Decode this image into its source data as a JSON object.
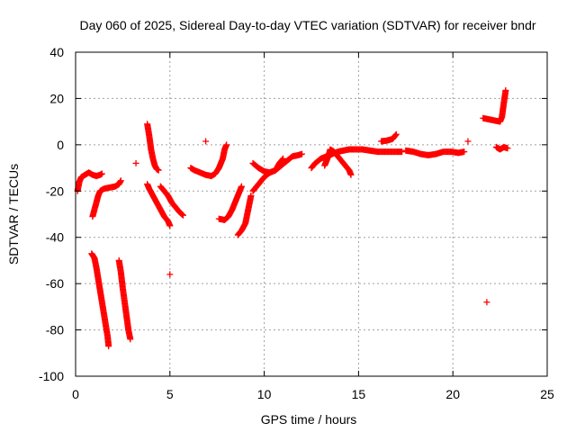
{
  "chart_data": {
    "type": "scatter",
    "title": "Day 060 of 2025, Sidereal Day-to-day VTEC variation (SDTVAR) for receiver bndr",
    "xlabel": "GPS time / hours",
    "ylabel": "SDTVAR / TECUs",
    "xlim": [
      0,
      25
    ],
    "ylim": [
      -100,
      40
    ],
    "xticks": [
      "0",
      "5",
      "10",
      "15",
      "20",
      "25"
    ],
    "yticks": [
      "-100",
      "-80",
      "-60",
      "-40",
      "-20",
      "0",
      "20",
      "40"
    ],
    "grid": true,
    "legend": "none",
    "marker_color": "#ff0000",
    "marker": "plus",
    "series": [
      {
        "segments": [
          [
            [
              0.1,
              -20
            ],
            [
              0.2,
              -16
            ],
            [
              0.3,
              -14
            ],
            [
              0.5,
              -13
            ],
            [
              0.7,
              -12
            ],
            [
              0.9,
              -13
            ],
            [
              1.1,
              -13.5
            ],
            [
              1.3,
              -13
            ],
            [
              1.4,
              -12.5
            ]
          ],
          [
            [
              0.9,
              -31
            ],
            [
              1.0,
              -28
            ],
            [
              1.1,
              -25
            ],
            [
              1.2,
              -22
            ],
            [
              1.3,
              -20
            ],
            [
              1.5,
              -19
            ],
            [
              1.8,
              -18.5
            ],
            [
              2.1,
              -18
            ],
            [
              2.3,
              -17
            ],
            [
              2.4,
              -15.5
            ]
          ],
          [
            [
              0.85,
              -47
            ],
            [
              1.0,
              -49
            ],
            [
              1.1,
              -53
            ],
            [
              1.2,
              -58
            ],
            [
              1.3,
              -63
            ],
            [
              1.4,
              -68
            ],
            [
              1.5,
              -73
            ],
            [
              1.6,
              -78
            ],
            [
              1.7,
              -83
            ],
            [
              1.75,
              -87
            ]
          ],
          [
            [
              2.3,
              -50
            ],
            [
              2.4,
              -55
            ],
            [
              2.5,
              -62
            ],
            [
              2.6,
              -68
            ],
            [
              2.7,
              -74
            ],
            [
              2.8,
              -80
            ],
            [
              2.9,
              -84
            ]
          ],
          [
            [
              3.8,
              9
            ],
            [
              3.9,
              4
            ],
            [
              4.0,
              -2
            ],
            [
              4.1,
              -6
            ],
            [
              4.2,
              -9
            ],
            [
              4.3,
              -10.5
            ],
            [
              4.4,
              -11
            ]
          ],
          [
            [
              3.8,
              -17
            ],
            [
              3.9,
              -19
            ],
            [
              4.1,
              -22
            ],
            [
              4.3,
              -25
            ],
            [
              4.5,
              -28
            ],
            [
              4.7,
              -31
            ],
            [
              4.9,
              -33
            ],
            [
              5.0,
              -35
            ]
          ],
          [
            [
              4.5,
              -18
            ],
            [
              4.7,
              -20
            ],
            [
              4.9,
              -22
            ],
            [
              5.1,
              -25
            ],
            [
              5.3,
              -27
            ],
            [
              5.5,
              -29
            ],
            [
              5.7,
              -30.5
            ]
          ],
          [
            [
              6.1,
              -10
            ],
            [
              6.3,
              -11
            ],
            [
              6.6,
              -12
            ],
            [
              6.9,
              -13
            ],
            [
              7.2,
              -13.5
            ],
            [
              7.4,
              -12.5
            ],
            [
              7.6,
              -10
            ],
            [
              7.8,
              -6
            ],
            [
              7.9,
              -2
            ],
            [
              8.0,
              0
            ]
          ],
          [
            [
              7.6,
              -32
            ],
            [
              7.9,
              -32.5
            ],
            [
              8.1,
              -31
            ],
            [
              8.3,
              -28
            ],
            [
              8.5,
              -24
            ],
            [
              8.7,
              -20
            ],
            [
              8.8,
              -18
            ]
          ],
          [
            [
              8.6,
              -39
            ],
            [
              8.8,
              -37
            ],
            [
              9.0,
              -34
            ],
            [
              9.1,
              -30
            ],
            [
              9.2,
              -26
            ],
            [
              9.3,
              -22
            ]
          ],
          [
            [
              9.4,
              -20
            ],
            [
              9.6,
              -18
            ],
            [
              9.8,
              -16
            ],
            [
              10.0,
              -14
            ],
            [
              10.3,
              -12
            ],
            [
              10.6,
              -11
            ],
            [
              10.9,
              -9
            ],
            [
              11.2,
              -7
            ],
            [
              11.5,
              -5
            ],
            [
              11.8,
              -4.5
            ],
            [
              12.0,
              -4
            ]
          ],
          [
            [
              9.4,
              -8
            ],
            [
              9.7,
              -10
            ],
            [
              10.0,
              -11.5
            ],
            [
              10.3,
              -12
            ],
            [
              10.6,
              -11
            ],
            [
              10.8,
              -8
            ],
            [
              11.0,
              -6
            ]
          ],
          [
            [
              12.5,
              -10
            ],
            [
              12.7,
              -8
            ],
            [
              13.0,
              -6
            ],
            [
              13.3,
              -5
            ],
            [
              13.6,
              -4
            ],
            [
              13.9,
              -3
            ],
            [
              14.2,
              -2.5
            ],
            [
              14.5,
              -2
            ],
            [
              14.8,
              -2
            ],
            [
              15.2,
              -2
            ],
            [
              15.6,
              -2.5
            ],
            [
              16.0,
              -3
            ],
            [
              16.5,
              -3
            ],
            [
              17.0,
              -3
            ],
            [
              17.3,
              -3
            ]
          ],
          [
            [
              13.2,
              -9
            ],
            [
              13.4,
              -5
            ],
            [
              13.5,
              -2
            ],
            [
              13.7,
              -3
            ],
            [
              13.9,
              -5
            ],
            [
              14.1,
              -7
            ],
            [
              14.3,
              -9
            ],
            [
              14.5,
              -11
            ],
            [
              14.6,
              -13
            ]
          ],
          [
            [
              16.2,
              1.5
            ],
            [
              16.5,
              1.8
            ],
            [
              16.8,
              2.5
            ],
            [
              17.0,
              4.5
            ]
          ],
          [
            [
              17.5,
              -2.5
            ],
            [
              17.9,
              -3
            ],
            [
              18.3,
              -4
            ],
            [
              18.7,
              -4.5
            ],
            [
              19.1,
              -4
            ],
            [
              19.5,
              -3
            ],
            [
              19.9,
              -3
            ],
            [
              20.3,
              -3.5
            ],
            [
              20.6,
              -3
            ]
          ],
          [
            [
              21.6,
              11.5
            ],
            [
              21.9,
              11
            ],
            [
              22.2,
              10.5
            ],
            [
              22.5,
              10
            ],
            [
              22.6,
              12
            ],
            [
              22.7,
              18
            ],
            [
              22.8,
              23.5
            ]
          ],
          [
            [
              22.3,
              -1
            ],
            [
              22.5,
              -2
            ],
            [
              22.7,
              -1
            ],
            [
              22.9,
              -1.5
            ]
          ]
        ]
      }
    ],
    "isolated_points": [
      [
        3.2,
        -8
      ],
      [
        5.0,
        -56
      ],
      [
        6.9,
        1.5
      ],
      [
        20.8,
        1.5
      ],
      [
        21.8,
        -68
      ]
    ]
  }
}
